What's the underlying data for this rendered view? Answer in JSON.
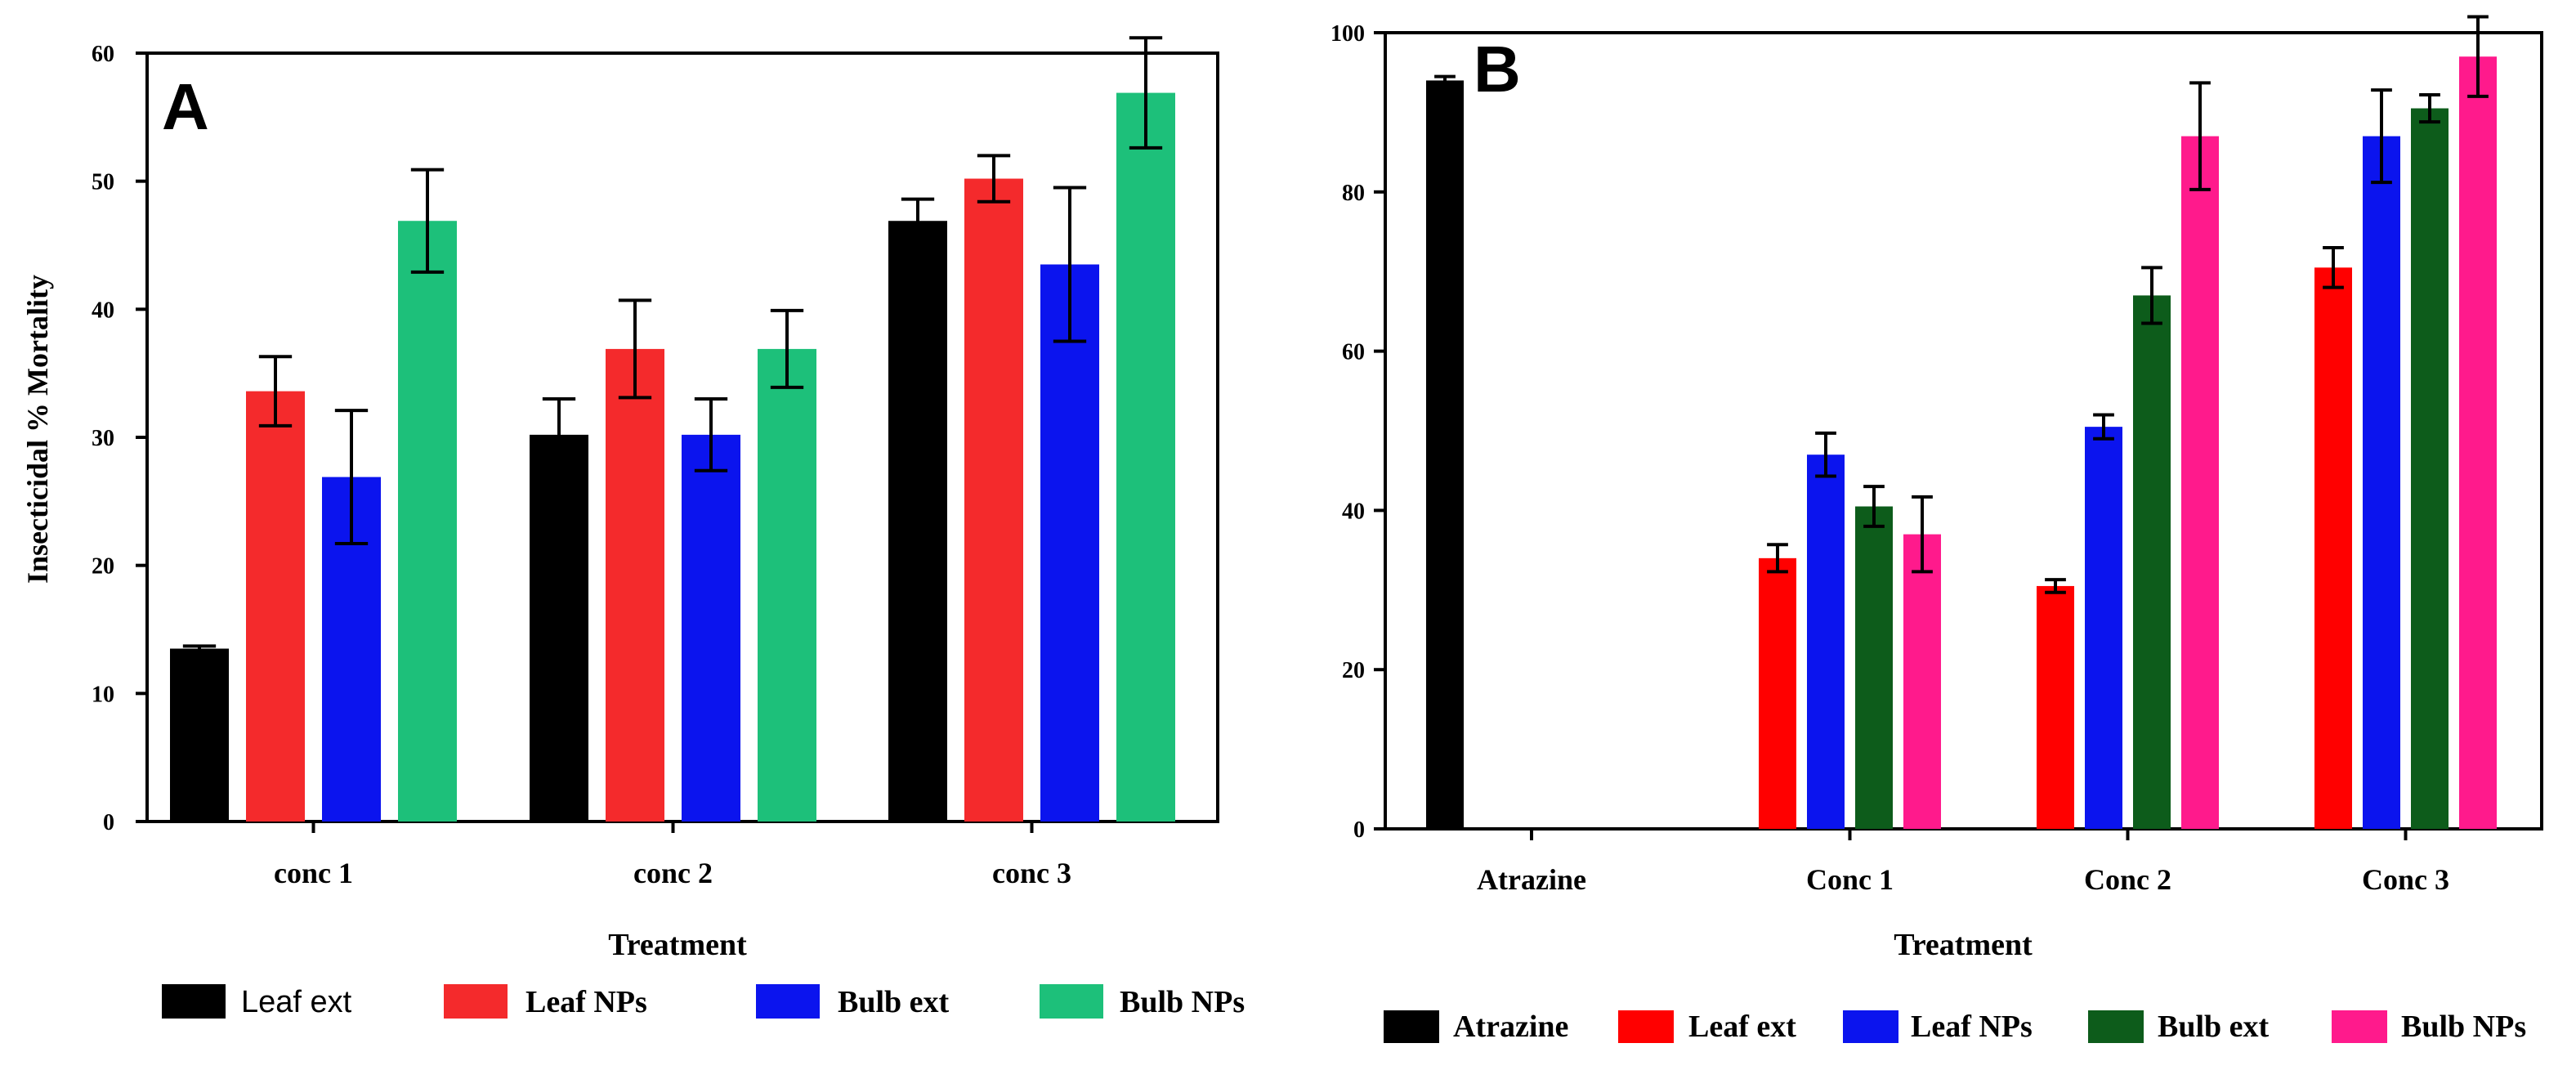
{
  "chart_data": [
    {
      "type": "bar",
      "panel_label": "A",
      "title": "",
      "xlabel": "Treatment",
      "ylabel": "Insecticidal % Mortality",
      "ylim": [
        0,
        60
      ],
      "yticks": [
        "0",
        "10",
        "20",
        "30",
        "40",
        "50",
        "60"
      ],
      "categories": [
        "conc 1",
        "conc 2",
        "conc 3"
      ],
      "series": [
        {
          "name": "Leaf ext",
          "color": "#000000",
          "values": [
            13.5,
            30.2,
            46.9
          ],
          "errors": [
            0.2,
            2.8,
            1.7
          ]
        },
        {
          "name": "Leaf NPs",
          "color": "#f42a2c",
          "values": [
            33.6,
            36.9,
            50.2
          ],
          "errors": [
            2.7,
            3.8,
            1.8
          ]
        },
        {
          "name": "Bulb ext",
          "color": "#0b14ee",
          "values": [
            26.9,
            30.2,
            43.5
          ],
          "errors": [
            5.2,
            2.8,
            6.0
          ]
        },
        {
          "name": "Bulb NPs",
          "color": "#1dc07a",
          "values": [
            46.9,
            36.9,
            56.9
          ],
          "errors": [
            4.0,
            3.0,
            4.3
          ]
        }
      ],
      "legend_position": "bottom"
    },
    {
      "type": "bar",
      "panel_label": "B",
      "title": "",
      "xlabel": "Treatment",
      "ylabel": "",
      "ylim": [
        0,
        100
      ],
      "yticks": [
        "0",
        "20",
        "40",
        "60",
        "80",
        "100"
      ],
      "categories": [
        "Atrazine",
        "Conc 1",
        "Conc 2",
        "Conc 3"
      ],
      "series": [
        {
          "name": "Atrazine",
          "color": "#000000",
          "values": [
            94,
            null,
            null,
            null
          ],
          "errors": [
            0.5,
            null,
            null,
            null
          ]
        },
        {
          "name": "Leaf ext",
          "color": "#ff0000",
          "values": [
            null,
            34,
            30.5,
            70.5
          ],
          "errors": [
            null,
            1.7,
            0.8,
            2.5
          ]
        },
        {
          "name": "Leaf NPs",
          "color": "#0b14ee",
          "values": [
            null,
            47,
            50.5,
            87
          ],
          "errors": [
            null,
            2.7,
            1.5,
            5.8
          ]
        },
        {
          "name": "Bulb ext",
          "color": "#0d5c1b",
          "values": [
            null,
            40.5,
            67,
            90.5
          ],
          "errors": [
            null,
            2.5,
            3.5,
            1.7
          ]
        },
        {
          "name": "Bulb NPs",
          "color": "#ff1a8c",
          "values": [
            null,
            37,
            87,
            97
          ],
          "errors": [
            null,
            4.7,
            6.7,
            5.0
          ]
        }
      ],
      "legend_position": "bottom"
    }
  ]
}
